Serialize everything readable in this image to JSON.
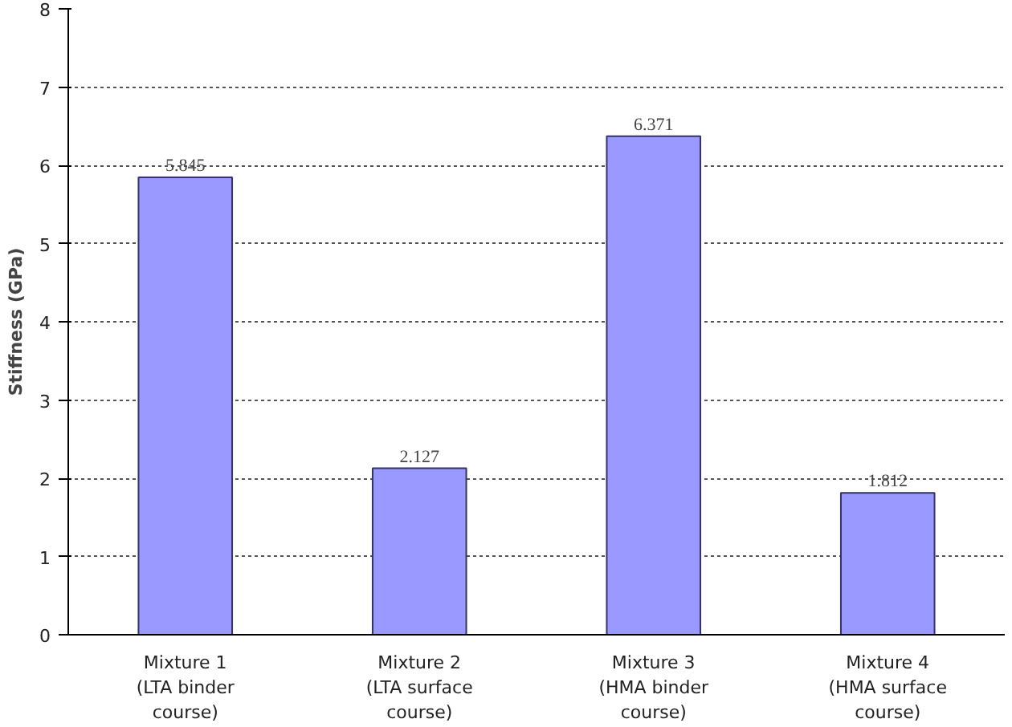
{
  "chart_data": {
    "type": "bar",
    "ylabel": "Stiffness (GPa)",
    "categories": [
      "Mixture 1\n(LTA binder\ncourse)",
      "Mixture 2\n(LTA surface\ncourse)",
      "Mixture 3\n(HMA binder\ncourse)",
      "Mixture 4\n(HMA surface\ncourse)"
    ],
    "values": [
      5.845,
      2.127,
      6.371,
      1.812
    ],
    "color": "#9999ff",
    "ylim": [
      0,
      8
    ],
    "yticks": [
      0,
      1,
      2,
      3,
      4,
      5,
      6,
      7,
      8
    ],
    "grid": "y",
    "data_labels": true
  }
}
